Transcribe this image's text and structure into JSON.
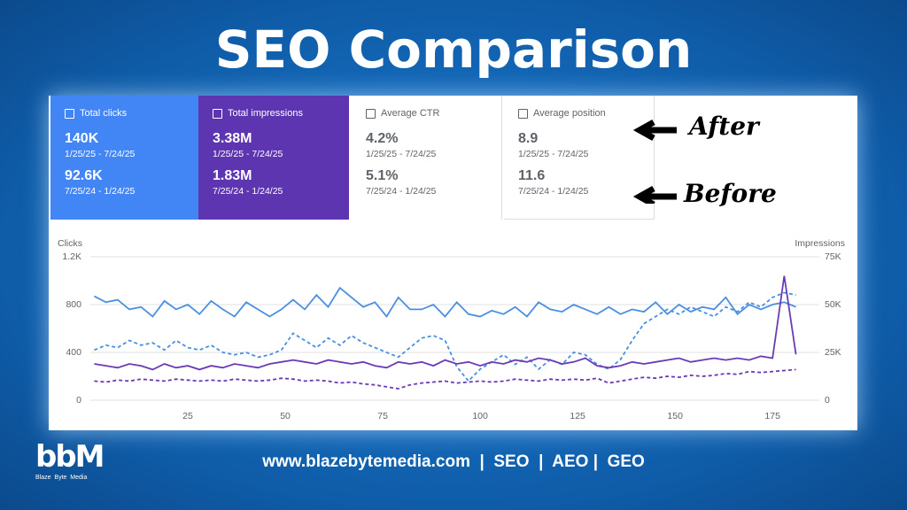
{
  "header": {
    "title": "SEO Comparison"
  },
  "cards": [
    {
      "label": "Total clicks",
      "after": "140K",
      "after_range": "1/25/25 - 7/24/25",
      "before": "92.6K",
      "before_range": "7/25/24 - 1/24/25"
    },
    {
      "label": "Total impressions",
      "after": "3.38M",
      "after_range": "1/25/25 - 7/24/25",
      "before": "1.83M",
      "before_range": "7/25/24 - 1/24/25"
    },
    {
      "label": "Average CTR",
      "after": "4.2%",
      "after_range": "1/25/25 - 7/24/25",
      "before": "5.1%",
      "before_range": "7/25/24 - 1/24/25"
    },
    {
      "label": "Average position",
      "after": "8.9",
      "after_range": "1/25/25 - 7/24/25",
      "before": "11.6",
      "before_range": "7/25/24 - 1/24/25"
    }
  ],
  "annotations": {
    "after": "After",
    "before": "Before"
  },
  "chart": {
    "type": "line",
    "y_title": "Clicks",
    "y2_title": "Impressions",
    "x": [
      1,
      4,
      7,
      10,
      13,
      16,
      19,
      22,
      25,
      28,
      31,
      34,
      37,
      40,
      43,
      46,
      49,
      52,
      55,
      58,
      61,
      64,
      67,
      70,
      73,
      76,
      79,
      82,
      85,
      88,
      91,
      94,
      97,
      100,
      103,
      106,
      109,
      112,
      115,
      118,
      121,
      124,
      127,
      130,
      133,
      136,
      139,
      142,
      145,
      148,
      151,
      154,
      157,
      160,
      163,
      166,
      169,
      172,
      175,
      178,
      181
    ],
    "xlim": [
      0,
      187
    ],
    "xticks": [
      25,
      50,
      75,
      100,
      125,
      150,
      175
    ],
    "ylim": [
      0,
      1200
    ],
    "yticks": [
      0,
      400,
      800,
      {
        "value": 1200,
        "label": "1.2K"
      }
    ],
    "y2lim": [
      0,
      75000
    ],
    "y2ticks": [
      {
        "value": 0,
        "label": "0"
      },
      {
        "value": 25000,
        "label": "25K"
      },
      {
        "value": 50000,
        "label": "50K"
      },
      {
        "value": 75000,
        "label": "75K"
      }
    ],
    "grid": true,
    "series": [
      {
        "color": "#4a8fe0",
        "dashed": false,
        "values": [
          870,
          820,
          840,
          760,
          780,
          700,
          830,
          760,
          800,
          720,
          830,
          760,
          700,
          820,
          760,
          700,
          760,
          840,
          760,
          880,
          780,
          940,
          860,
          780,
          820,
          700,
          860,
          760,
          760,
          800,
          700,
          820,
          720,
          700,
          750,
          720,
          780,
          700,
          820,
          760,
          740,
          800,
          760,
          720,
          780,
          720,
          760,
          740,
          820,
          720,
          800,
          740,
          780,
          760,
          860,
          720,
          800,
          760,
          800,
          820,
          780
        ]
      },
      {
        "color": "#4a8fe0",
        "dashed": true,
        "values": [
          420,
          460,
          440,
          500,
          460,
          480,
          420,
          500,
          440,
          420,
          460,
          400,
          380,
          400,
          360,
          380,
          420,
          560,
          500,
          440,
          520,
          460,
          540,
          480,
          440,
          400,
          360,
          440,
          520,
          540,
          500,
          280,
          160,
          260,
          320,
          380,
          300,
          360,
          260,
          340,
          300,
          400,
          380,
          300,
          260,
          340,
          500,
          640,
          700,
          760,
          720,
          780,
          740,
          700,
          780,
          740,
          820,
          780,
          860,
          900,
          880
        ]
      },
      {
        "color": "#6a3bb5",
        "dashed": false,
        "axis": "y2",
        "values": [
          19000,
          18000,
          17000,
          19000,
          18000,
          16000,
          19000,
          17000,
          18000,
          16000,
          18000,
          17000,
          19000,
          18000,
          17000,
          19000,
          20000,
          21000,
          20000,
          19000,
          21000,
          20000,
          19000,
          20000,
          18000,
          17000,
          20000,
          19000,
          20000,
          18000,
          21000,
          19000,
          20000,
          18000,
          20000,
          19000,
          21000,
          20000,
          22000,
          21000,
          19000,
          20000,
          22000,
          18000,
          17000,
          18000,
          20000,
          19000,
          20000,
          21000,
          22000,
          20000,
          21000,
          22000,
          21000,
          22000,
          21000,
          23000,
          22000,
          65000,
          24000
        ]
      },
      {
        "color": "#6a3bb5",
        "dashed": true,
        "axis": "y2",
        "values": [
          10000,
          9500,
          10500,
          10000,
          11000,
          10500,
          10000,
          11000,
          10500,
          10000,
          10500,
          10000,
          11000,
          10500,
          10000,
          10500,
          11500,
          11000,
          10000,
          10500,
          10000,
          9000,
          9500,
          8500,
          8000,
          7000,
          6000,
          8000,
          9000,
          9500,
          10000,
          9000,
          9500,
          10000,
          9500,
          10000,
          11000,
          10500,
          10000,
          11000,
          10500,
          11000,
          10500,
          11500,
          9000,
          10000,
          11000,
          12000,
          11500,
          12500,
          12000,
          13000,
          12500,
          13000,
          14000,
          13500,
          15000,
          14500,
          15000,
          15500,
          16000
        ]
      }
    ]
  },
  "footer": {
    "text": "www.blazebytemedia.com  |  SEO  |  AEO |  GEO"
  },
  "logo": {
    "mark": "bbM",
    "caption": "Blaze  Byte  Media"
  }
}
